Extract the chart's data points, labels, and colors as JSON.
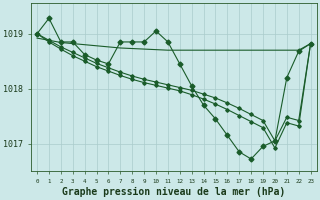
{
  "bg_color": "#cce8e8",
  "grid_color": "#aacccc",
  "line_color": "#1a5c2a",
  "title": "Graphe pression niveau de la mer (hPa)",
  "title_fontsize": 7,
  "hours": [
    0,
    1,
    2,
    3,
    4,
    5,
    6,
    7,
    8,
    9,
    10,
    11,
    12,
    13,
    14,
    15,
    16,
    17,
    18,
    19,
    20,
    21,
    22,
    23
  ],
  "obs": [
    1019.0,
    1019.28,
    1018.85,
    1018.85,
    1018.62,
    1018.52,
    1018.45,
    1018.85,
    1018.85,
    1018.85,
    1019.05,
    1018.85,
    1018.45,
    1018.05,
    1017.7,
    1017.45,
    1017.15,
    1016.85,
    1016.72,
    1016.95,
    1017.05,
    1018.2,
    1018.68,
    1018.82
  ],
  "line_flat": [
    1018.92,
    1018.88,
    1018.84,
    1018.82,
    1018.8,
    1018.78,
    1018.76,
    1018.74,
    1018.73,
    1018.72,
    1018.71,
    1018.7,
    1018.7,
    1018.7,
    1018.7,
    1018.7,
    1018.7,
    1018.7,
    1018.7,
    1018.7,
    1018.7,
    1018.7,
    1018.7,
    1018.82
  ],
  "line_decline": [
    1019.0,
    1018.88,
    1018.76,
    1018.66,
    1018.56,
    1018.46,
    1018.38,
    1018.3,
    1018.23,
    1018.17,
    1018.12,
    1018.07,
    1018.02,
    1017.97,
    1017.9,
    1017.83,
    1017.74,
    1017.64,
    1017.53,
    1017.42,
    1017.05,
    1017.48,
    1017.42,
    1018.82
  ],
  "line_decline2": [
    1019.0,
    1018.85,
    1018.72,
    1018.6,
    1018.5,
    1018.4,
    1018.32,
    1018.24,
    1018.17,
    1018.11,
    1018.06,
    1018.01,
    1017.96,
    1017.89,
    1017.81,
    1017.72,
    1017.62,
    1017.51,
    1017.4,
    1017.29,
    1016.92,
    1017.38,
    1017.32,
    1018.82
  ],
  "yticks": [
    1017.0,
    1018.0,
    1019.0
  ],
  "ylim": [
    1016.5,
    1019.55
  ],
  "xlim": [
    -0.5,
    23.5
  ]
}
